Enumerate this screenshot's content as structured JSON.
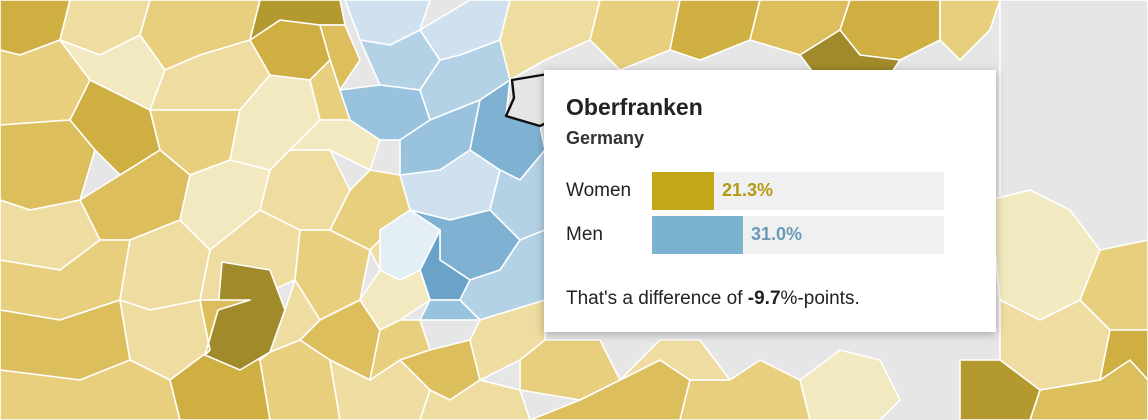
{
  "tooltip": {
    "region": "Oberfranken",
    "country": "Germany",
    "rows": [
      {
        "label": "Women",
        "value": 21.3,
        "display": "21.3%",
        "color": "#c2a71a",
        "text_color": "#b39a14"
      },
      {
        "label": "Men",
        "value": 31.0,
        "display": "31.0%",
        "color": "#7bb2cf",
        "text_color": "#6b9ab8"
      }
    ],
    "bar_max": 100,
    "difference_prefix": "That's a difference of ",
    "difference_value": "-9.7",
    "difference_suffix": "%-points."
  },
  "colors": {
    "sea": "#e6e6e6",
    "gold_scale": [
      "#f3e9c0",
      "#eedca0",
      "#e7cf7e",
      "#dcbf5c",
      "#cfae42",
      "#b4992e",
      "#a08a2a"
    ],
    "blue_scale": [
      "#e4eef5",
      "#cfe1ee",
      "#b4d2e6",
      "#98c2de",
      "#7fb2d2",
      "#6aa3c7"
    ],
    "outline": "#111111"
  }
}
